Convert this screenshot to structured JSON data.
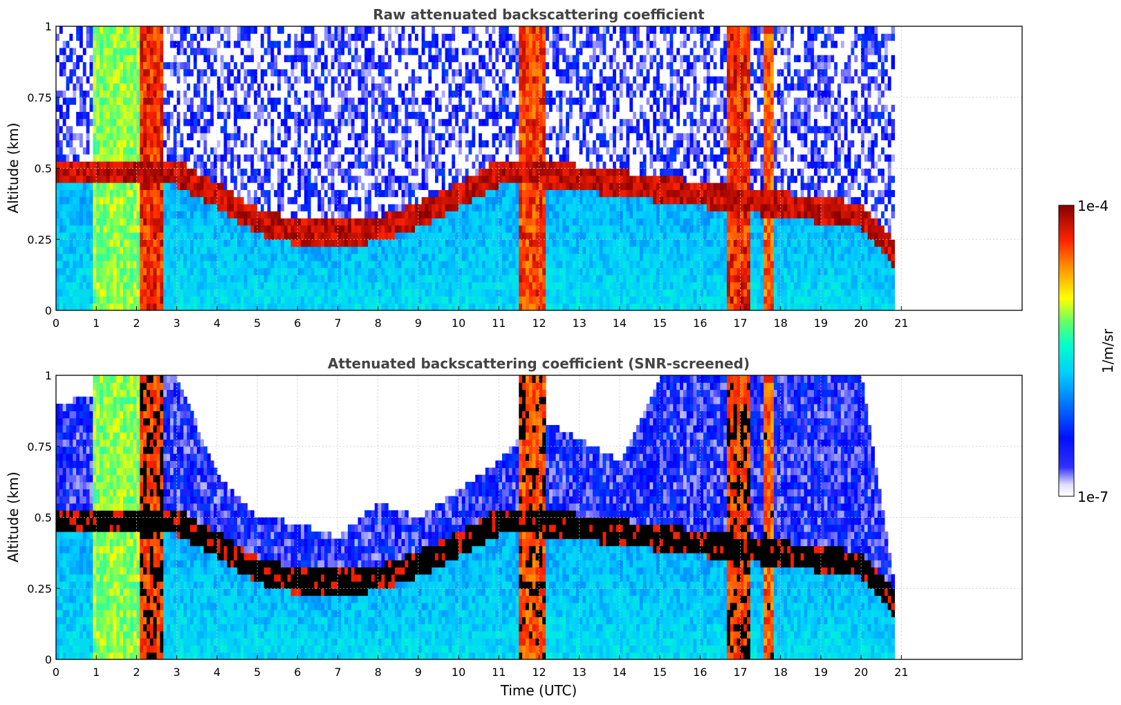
{
  "colors": {
    "colormap": [
      "#ffffff",
      "#e8e8ff",
      "#0000ff",
      "#0066ff",
      "#00ccff",
      "#00ffcc",
      "#66ff66",
      "#ffff00",
      "#ff9900",
      "#ff2200",
      "#880000"
    ],
    "screened_overflow": "#000000",
    "grid": "#c8c8c8",
    "title": "#444444"
  },
  "colorbar": {
    "label": "1/m/sr",
    "max_label": "1e-4",
    "min_label": "1e-7",
    "scale": "log",
    "range": [
      1e-07,
      0.0001
    ]
  },
  "chart_data": [
    {
      "type": "heatmap",
      "title": "Raw attenuated backscattering coefficient",
      "xlabel": "",
      "ylabel": "Altitude (km)",
      "xlim": [
        0,
        24
      ],
      "ylim": [
        0,
        1
      ],
      "x_ticks": [
        "0",
        "1",
        "2",
        "3",
        "4",
        "5",
        "6",
        "7",
        "8",
        "9",
        "10",
        "11",
        "12",
        "13",
        "14",
        "15",
        "16",
        "17",
        "18",
        "19",
        "20",
        "21"
      ],
      "y_ticks": [
        "0",
        "0.25",
        "0.5",
        "0.75",
        "1"
      ],
      "grid": true,
      "data_end_time": 20.83,
      "aerosol_layer_top_km": [
        {
          "time": 0,
          "value": 0.5
        },
        {
          "time": 3,
          "value": 0.5
        },
        {
          "time": 4,
          "value": 0.42
        },
        {
          "time": 5,
          "value": 0.33
        },
        {
          "time": 6,
          "value": 0.29
        },
        {
          "time": 7,
          "value": 0.29
        },
        {
          "time": 8,
          "value": 0.3
        },
        {
          "time": 9,
          "value": 0.35
        },
        {
          "time": 10,
          "value": 0.42
        },
        {
          "time": 11,
          "value": 0.5
        },
        {
          "time": 12,
          "value": 0.5
        },
        {
          "time": 20,
          "value": 0.35
        },
        {
          "time": 20.8,
          "value": 0.22
        }
      ],
      "high_signal_columns": [
        {
          "start": 0.9,
          "end": 2.05,
          "level": 0.62
        },
        {
          "start": 2.05,
          "end": 2.7,
          "level": 0.9
        },
        {
          "start": 11.5,
          "end": 12.2,
          "level": 0.88
        },
        {
          "start": 16.7,
          "end": 17.25,
          "level": 0.9
        },
        {
          "start": 17.6,
          "end": 17.8,
          "level": 0.85
        }
      ]
    },
    {
      "type": "heatmap",
      "title": "Attenuated backscattering coefficient (SNR-screened)",
      "xlabel": "Time (UTC)",
      "ylabel": "Altitude (km)",
      "xlim": [
        0,
        24
      ],
      "ylim": [
        0,
        1
      ],
      "x_ticks": [
        "0",
        "1",
        "2",
        "3",
        "4",
        "5",
        "6",
        "7",
        "8",
        "9",
        "10",
        "11",
        "12",
        "13",
        "14",
        "15",
        "16",
        "17",
        "18",
        "19",
        "20",
        "21"
      ],
      "y_ticks": [
        "0",
        "0.25",
        "0.5",
        "0.75",
        "1"
      ],
      "grid": true,
      "data_end_time": 20.83,
      "screen_top_km": [
        {
          "time": 0,
          "value": 0.9
        },
        {
          "time": 3,
          "value": 1
        },
        {
          "time": 4,
          "value": 0.65
        },
        {
          "time": 5,
          "value": 0.5
        },
        {
          "time": 6,
          "value": 0.48
        },
        {
          "time": 7,
          "value": 0.43
        },
        {
          "time": 8,
          "value": 0.55
        },
        {
          "time": 9,
          "value": 0.5
        },
        {
          "time": 10,
          "value": 0.6
        },
        {
          "time": 11,
          "value": 0.7
        },
        {
          "time": 12,
          "value": 0.85
        },
        {
          "time": 14,
          "value": 0.7
        },
        {
          "time": 15,
          "value": 1
        },
        {
          "time": 20,
          "value": 1
        },
        {
          "time": 20.8,
          "value": 0.3
        }
      ]
    }
  ]
}
